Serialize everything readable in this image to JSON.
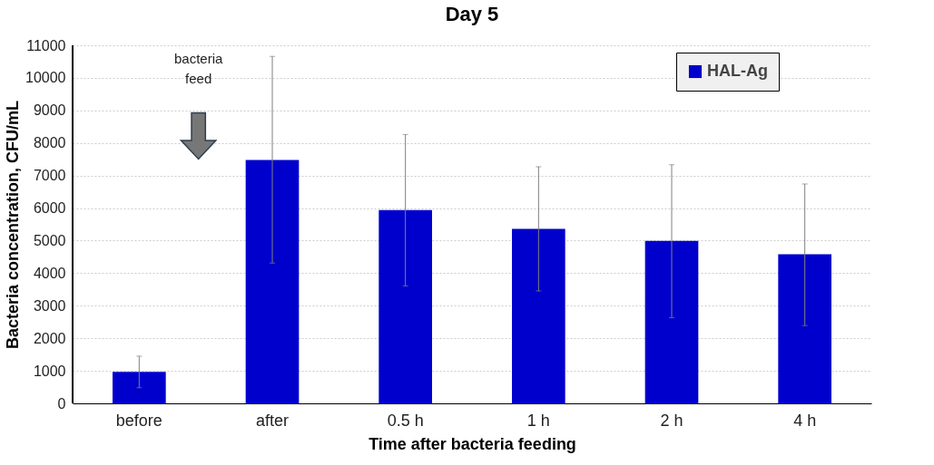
{
  "chart_data": {
    "type": "bar",
    "title": "Day 5",
    "xlabel": "Time after bacteria feeding",
    "ylabel": "Bacteria concentration, CFU/mL",
    "categories": [
      "before",
      "after",
      "0.5 h",
      "1 h",
      "2 h",
      "4 h"
    ],
    "series": [
      {
        "name": "HAL-Ag",
        "color": "#0000cc",
        "values": [
          970,
          7480,
          5940,
          5360,
          4990,
          4580
        ],
        "errors": [
          [
            480,
            1450
          ],
          [
            4310,
            10660
          ],
          [
            3610,
            8260
          ],
          [
            3450,
            7270
          ],
          [
            2630,
            7330
          ],
          [
            2390,
            6740
          ]
        ]
      }
    ],
    "ylim": [
      0,
      11000
    ],
    "yticks": [
      0,
      1000,
      2000,
      3000,
      4000,
      5000,
      6000,
      7000,
      8000,
      9000,
      10000,
      11000
    ],
    "grid": "y",
    "legend": "top right",
    "annotations": [
      "bacteria feed"
    ]
  }
}
